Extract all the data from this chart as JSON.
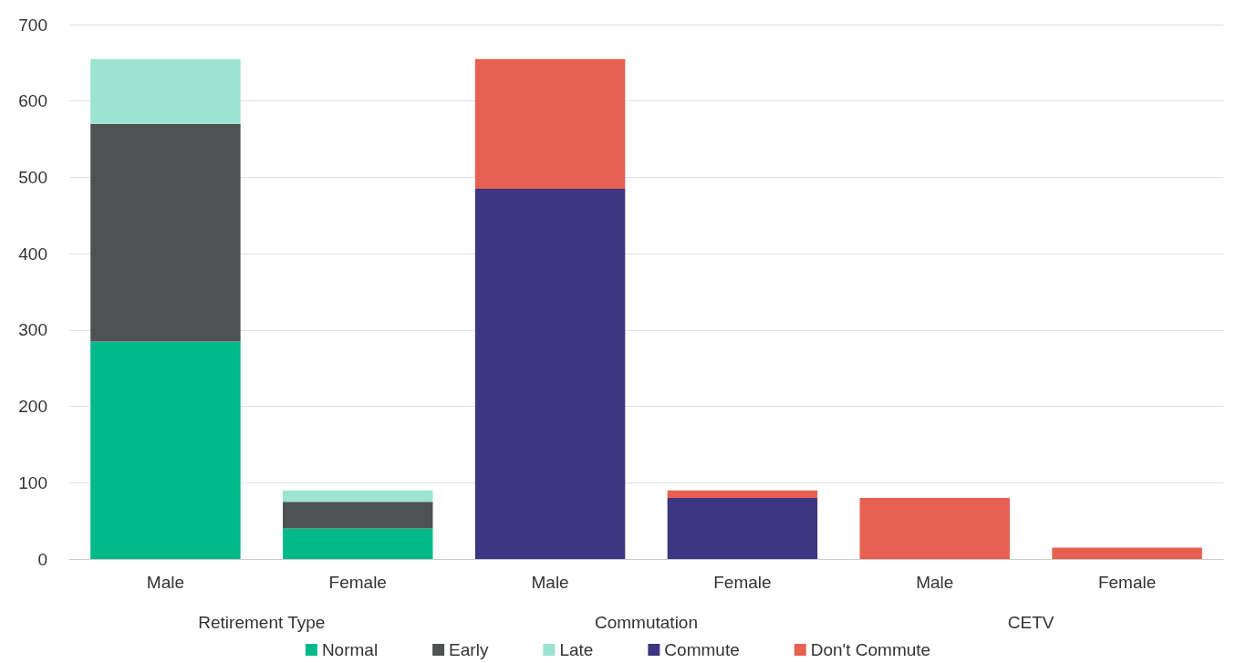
{
  "chart_data": {
    "type": "bar",
    "stacked": true,
    "categories": [
      "Male",
      "Female",
      "Male",
      "Female",
      "Male",
      "Female"
    ],
    "annotations": [
      "Retirement Type",
      "Commutation",
      "CETV"
    ],
    "series": [
      {
        "name": "Normal",
        "color": "#00b98a",
        "values": [
          285,
          40,
          null,
          null,
          null,
          null
        ]
      },
      {
        "name": "Early",
        "color": "#4f5252",
        "values": [
          285,
          35,
          null,
          null,
          null,
          null
        ]
      },
      {
        "name": "Late",
        "color": "#9de3d1",
        "values": [
          85,
          15,
          null,
          null,
          null,
          null
        ]
      },
      {
        "name": "Commute",
        "color": "#3c3580",
        "values": [
          null,
          null,
          485,
          80,
          null,
          null
        ]
      },
      {
        "name": "Don't Commute",
        "color": "#e66151",
        "values": [
          null,
          null,
          170,
          10,
          80,
          15
        ]
      }
    ],
    "ylim": [
      0,
      700
    ],
    "yticks": [
      0,
      100,
      200,
      300,
      400,
      500,
      600,
      700
    ],
    "grid": "y",
    "legend": "bottom"
  }
}
